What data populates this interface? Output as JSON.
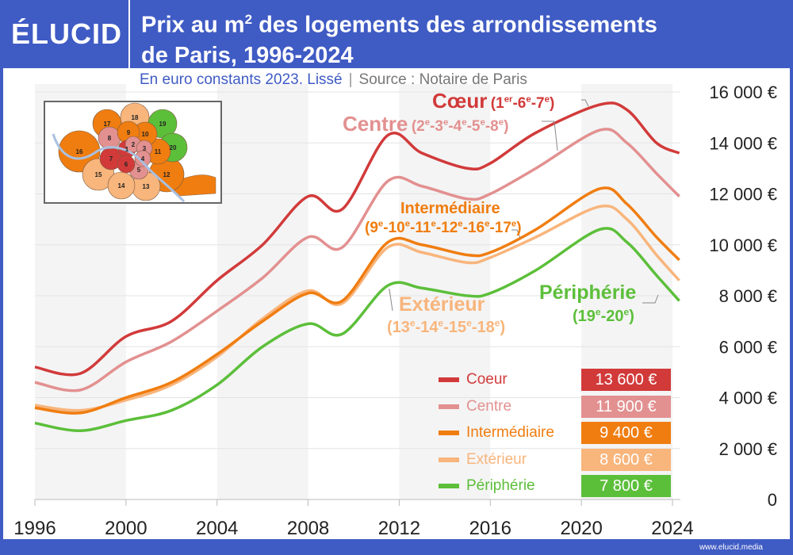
{
  "header": {
    "logo": "ÉLUCID",
    "title_line1_pre": "Prix au m",
    "title_sup": "2",
    "title_line1_post": " des logements des arrondissements",
    "title_line2": "de Paris, 1996-2024"
  },
  "subtitle": {
    "main": "En euro constants 2023. Lissé",
    "separator": "|",
    "source": "Source : Notaire de Paris"
  },
  "footer": {
    "url": "www.elucid.media"
  },
  "colors": {
    "header_bg": "#3f5bc4",
    "coeur": "#d23a3a",
    "centre": "#e39090",
    "intermediaire": "#f07d10",
    "exterieur": "#f8b57c",
    "peripherie": "#5cbf3a"
  },
  "map": {
    "arrondissements": [
      {
        "n": "1",
        "group": "coeur"
      },
      {
        "n": "2",
        "group": "centre"
      },
      {
        "n": "3",
        "group": "centre"
      },
      {
        "n": "4",
        "group": "centre"
      },
      {
        "n": "5",
        "group": "centre"
      },
      {
        "n": "6",
        "group": "coeur"
      },
      {
        "n": "7",
        "group": "coeur"
      },
      {
        "n": "8",
        "group": "centre"
      },
      {
        "n": "9",
        "group": "intermediaire"
      },
      {
        "n": "10",
        "group": "intermediaire"
      },
      {
        "n": "11",
        "group": "intermediaire"
      },
      {
        "n": "12",
        "group": "intermediaire"
      },
      {
        "n": "13",
        "group": "exterieur"
      },
      {
        "n": "14",
        "group": "exterieur"
      },
      {
        "n": "15",
        "group": "exterieur"
      },
      {
        "n": "16",
        "group": "intermediaire"
      },
      {
        "n": "17",
        "group": "intermediaire"
      },
      {
        "n": "18",
        "group": "exterieur"
      },
      {
        "n": "19",
        "group": "peripherie"
      },
      {
        "n": "20",
        "group": "peripherie"
      }
    ]
  },
  "annotations": {
    "coeur": {
      "name": "Cœur",
      "arr": [
        [
          "1",
          "er"
        ],
        [
          "6",
          "e"
        ],
        [
          "7",
          "e"
        ]
      ]
    },
    "centre": {
      "name": "Centre",
      "arr": [
        [
          "2",
          "e"
        ],
        [
          "3",
          "e"
        ],
        [
          "4",
          "e"
        ],
        [
          "5",
          "e"
        ],
        [
          "8",
          "e"
        ]
      ]
    },
    "intermediaire": {
      "name": "Intermédiaire",
      "arr": [
        [
          "9",
          "e"
        ],
        [
          "10",
          "e"
        ],
        [
          "11",
          "e"
        ],
        [
          "12",
          "e"
        ],
        [
          "16",
          "e"
        ],
        [
          "17",
          "e"
        ]
      ]
    },
    "exterieur": {
      "name": "Extérieur",
      "arr": [
        [
          "13",
          "e"
        ],
        [
          "14",
          "e"
        ],
        [
          "15",
          "e"
        ],
        [
          "18",
          "e"
        ]
      ]
    },
    "peripherie": {
      "name": "Périphérie",
      "arr": [
        [
          "19",
          "e"
        ],
        [
          "20",
          "e"
        ]
      ]
    }
  },
  "legend": [
    {
      "key": "coeur",
      "label": "Coeur",
      "value": "13 600 €"
    },
    {
      "key": "centre",
      "label": "Centre",
      "value": "11 900 €"
    },
    {
      "key": "intermediaire",
      "label": "Intermédiaire",
      "value": "9 400 €"
    },
    {
      "key": "exterieur",
      "label": "Extérieur",
      "value": "8 600 €"
    },
    {
      "key": "peripherie",
      "label": "Périphérie",
      "value": "7 800 €"
    }
  ],
  "chart_data": {
    "type": "line",
    "title": "Prix au m² des logements des arrondissements de Paris, 1996-2024",
    "subtitle": "En euro constants 2023. Lissé",
    "xlim": [
      1996,
      2024.3
    ],
    "ylim": [
      0,
      16000
    ],
    "x_ticks": [
      "1996",
      "2000",
      "2004",
      "2008",
      "2012",
      "2016",
      "2020",
      "2024"
    ],
    "y_ticks": [
      "0",
      "2 000 €",
      "4 000 €",
      "6 000 €",
      "8 000 €",
      "10 000 €",
      "12 000 €",
      "14 000 €",
      "16 000 €"
    ],
    "y_tick_values": [
      0,
      2000,
      4000,
      6000,
      8000,
      10000,
      12000,
      14000,
      16000
    ],
    "grid": true,
    "x": [
      1996,
      1998,
      2000,
      2002,
      2004,
      2006,
      2008,
      2009.5,
      2011.5,
      2013,
      2015,
      2016,
      2018,
      2020.8,
      2022,
      2023.3,
      2024.3
    ],
    "series": [
      {
        "name": "Coeur",
        "key": "coeur",
        "values": [
          5200,
          4950,
          6400,
          7000,
          8600,
          10000,
          11900,
          11400,
          14300,
          13600,
          13000,
          13200,
          14400,
          15500,
          15300,
          14000,
          13600
        ]
      },
      {
        "name": "Centre",
        "key": "centre",
        "values": [
          4600,
          4300,
          5400,
          6200,
          7400,
          8700,
          10300,
          9900,
          12500,
          12300,
          11800,
          12000,
          13000,
          14500,
          14000,
          12800,
          11900
        ]
      },
      {
        "name": "Intermédiaire",
        "key": "intermediaire",
        "values": [
          3600,
          3400,
          4000,
          4600,
          5700,
          7000,
          8100,
          7800,
          10100,
          10000,
          9600,
          9700,
          10600,
          12200,
          11600,
          10300,
          9400
        ]
      },
      {
        "name": "Extérieur",
        "key": "exterieur",
        "values": [
          3700,
          3500,
          3900,
          4500,
          5600,
          7100,
          8200,
          7700,
          9900,
          9700,
          9300,
          9500,
          10300,
          11500,
          11000,
          9600,
          8600
        ]
      },
      {
        "name": "Périphérie",
        "key": "peripherie",
        "values": [
          3000,
          2700,
          3100,
          3500,
          4500,
          6000,
          6900,
          6500,
          8400,
          8300,
          8000,
          8100,
          9000,
          10600,
          10100,
          8800,
          7800
        ]
      }
    ]
  }
}
